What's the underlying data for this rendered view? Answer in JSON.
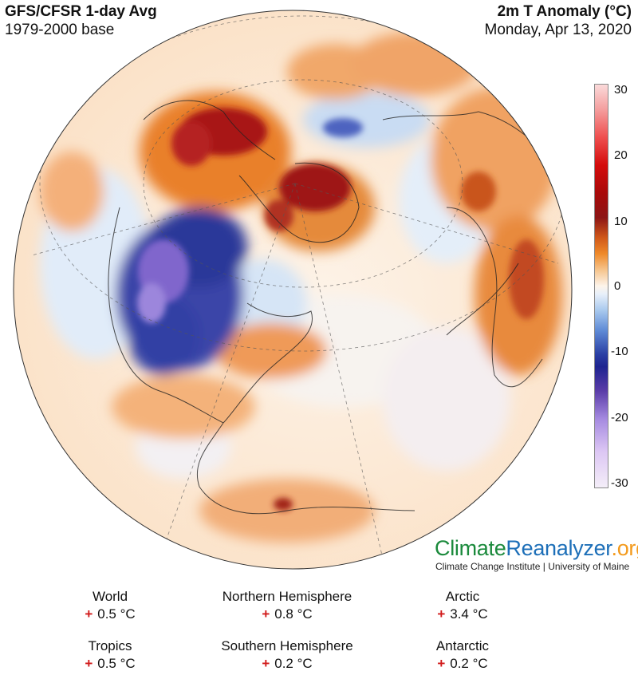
{
  "header": {
    "title": "GFS/CFSR 1-day Avg",
    "base": "1979-2000 base",
    "variable": "2m T Anomaly (°C)",
    "date": "Monday, Apr 13, 2020"
  },
  "colorbar": {
    "ticks": [
      "30",
      "20",
      "10",
      "0",
      "-10",
      "-20",
      "-30"
    ]
  },
  "branding": {
    "part1": "Climate",
    "part2": "Reanalyzer",
    "part3": ".org",
    "subtitle": "Climate Change Institute | University of Maine"
  },
  "stats": [
    {
      "region": "World",
      "sign": "+",
      "value": "0.5 °C"
    },
    {
      "region": "Northern Hemisphere",
      "sign": "+",
      "value": "0.8 °C"
    },
    {
      "region": "Arctic",
      "sign": "+",
      "value": "3.4 °C"
    },
    {
      "region": "Tropics",
      "sign": "+",
      "value": "0.5 °C"
    },
    {
      "region": "Southern Hemisphere",
      "sign": "+",
      "value": "0.2 °C"
    },
    {
      "region": "Antarctic",
      "sign": "+",
      "value": "0.2 °C"
    }
  ],
  "colors": {
    "warm_strong": "#a80a0a",
    "warm": "#ef8a2a",
    "neutral": "#ffffff",
    "cool": "#a9c9ee",
    "cold_strong": "#1e2490",
    "very_cold": "#a58ae0"
  }
}
